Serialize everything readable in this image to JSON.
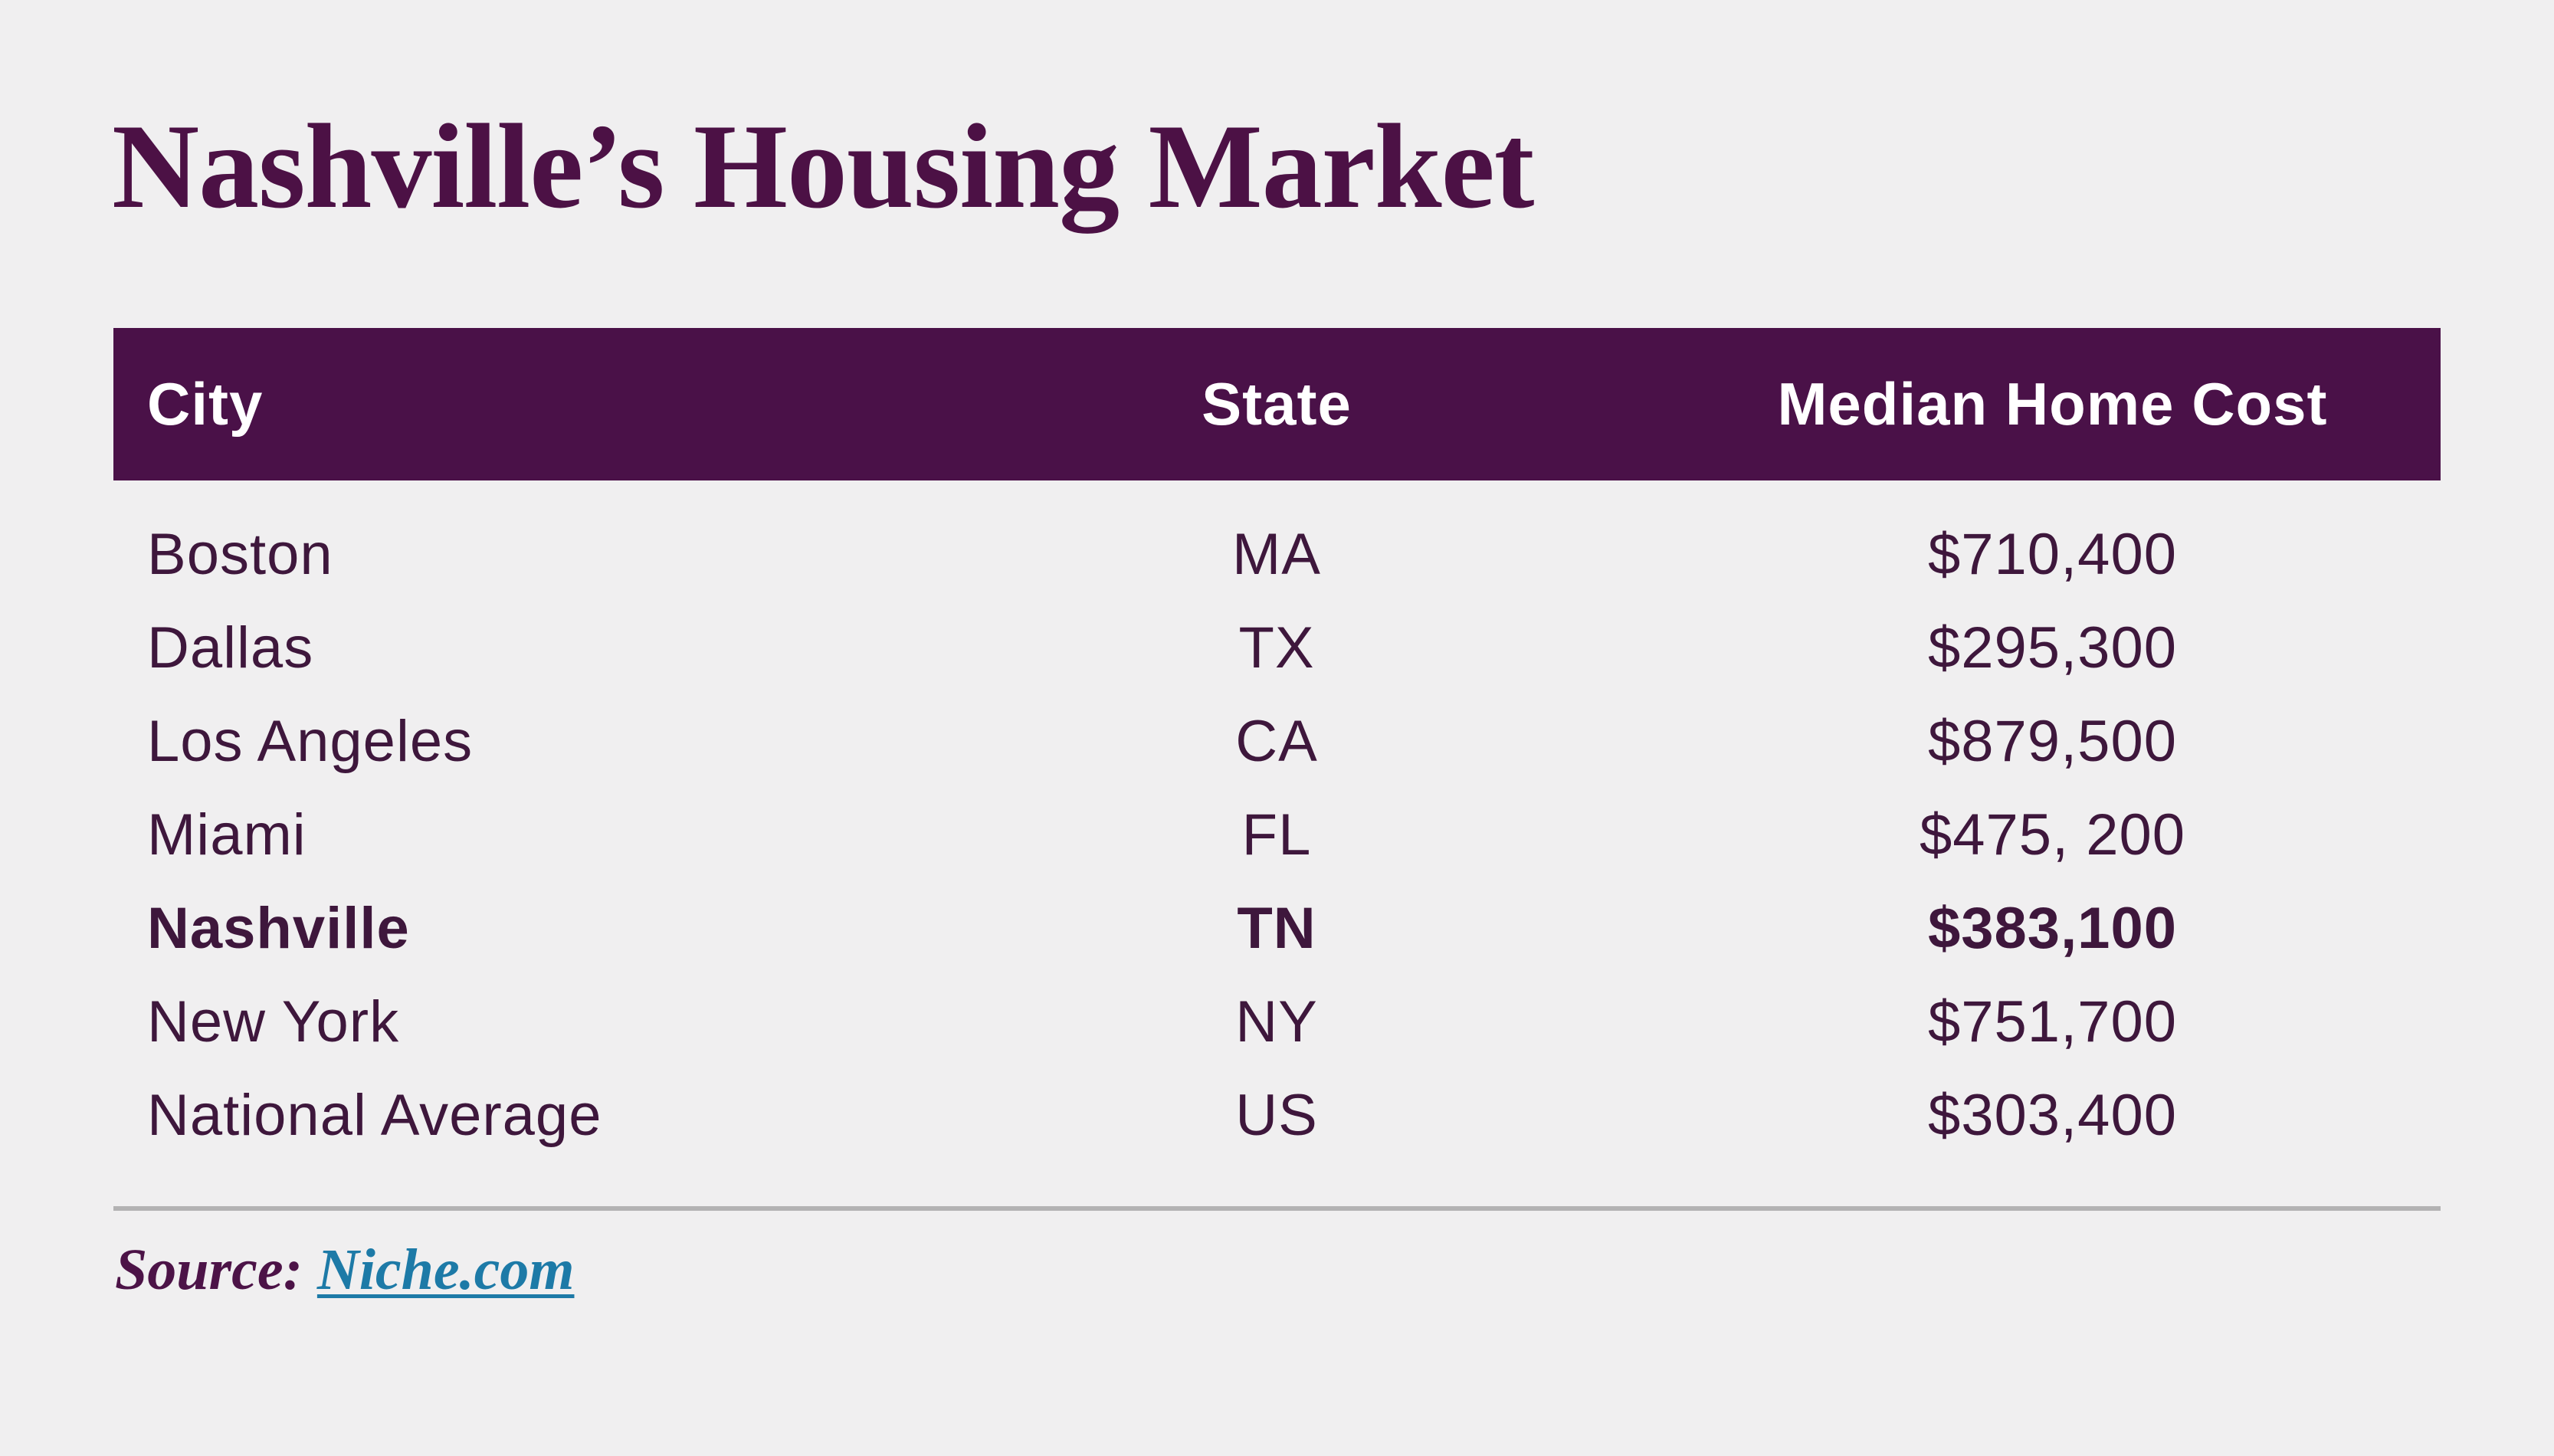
{
  "page": {
    "background": "#f0eff0"
  },
  "title": {
    "text": "Nashville’s Housing Market",
    "color": "#4c1145"
  },
  "table": {
    "header": {
      "background": "#4a1148",
      "text_color": "#ffffff",
      "columns": [
        {
          "label": "City"
        },
        {
          "label": "State"
        },
        {
          "label": "Median Home Cost"
        }
      ]
    },
    "body_text_color": "#3e173c",
    "rows": [
      {
        "city": "Boston",
        "state": "MA",
        "cost": "$710,400",
        "bold": false
      },
      {
        "city": "Dallas",
        "state": "TX",
        "cost": "$295,300",
        "bold": false
      },
      {
        "city": "Los Angeles",
        "state": "CA",
        "cost": "$879,500",
        "bold": false
      },
      {
        "city": "Miami",
        "state": "FL",
        "cost": "$475, 200",
        "bold": false
      },
      {
        "city": "Nashville",
        "state": "TN",
        "cost": "$383,100",
        "bold": true
      },
      {
        "city": "New York",
        "state": "NY",
        "cost": "$751,700",
        "bold": false
      },
      {
        "city": "National Average",
        "state": "US",
        "cost": "$303,400",
        "bold": false
      }
    ]
  },
  "divider_color": "#b3b2b3",
  "source": {
    "label": "Source:",
    "link_text": "Niche.com",
    "label_color": "#4c1347",
    "link_color": "#1d7aa7"
  },
  "chart_data": {
    "type": "table",
    "title": "Nashville’s Housing Market",
    "columns": [
      "City",
      "State",
      "Median Home Cost"
    ],
    "rows": [
      [
        "Boston",
        "MA",
        "$710,400"
      ],
      [
        "Dallas",
        "TX",
        "$295,300"
      ],
      [
        "Los Angeles",
        "CA",
        "$879,500"
      ],
      [
        "Miami",
        "FL",
        "$475, 200"
      ],
      [
        "Nashville",
        "TN",
        "$383,100"
      ],
      [
        "New York",
        "NY",
        "$751,700"
      ],
      [
        "National Average",
        "US",
        "$303,400"
      ]
    ],
    "values_numeric": [
      710400,
      295300,
      879500,
      475200,
      383100,
      751700,
      303400
    ],
    "highlighted_row": "Nashville",
    "source": "Niche.com"
  }
}
